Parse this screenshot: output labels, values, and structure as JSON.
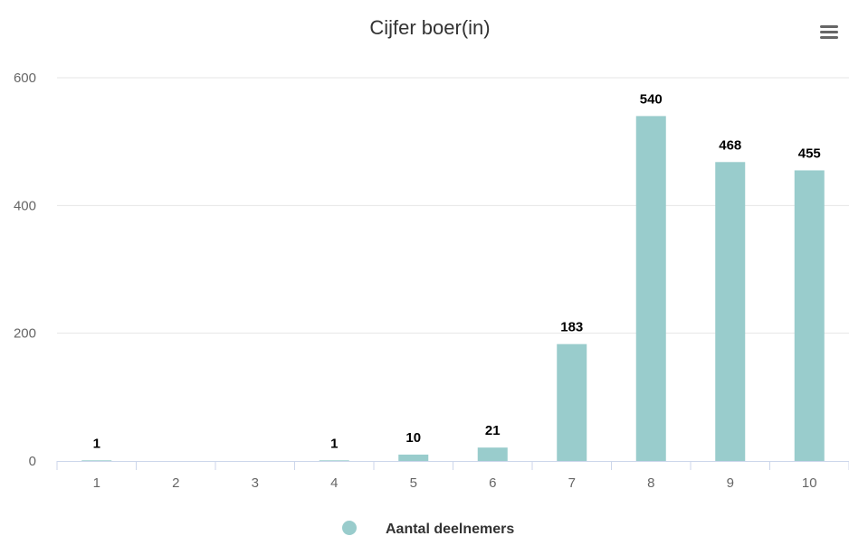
{
  "colors": {
    "bar": "#99cccc",
    "grid": "#e6e6e6",
    "axis": "#ccd6eb",
    "title": "#333333",
    "tick": "#666666",
    "menu_icon": "#666666"
  },
  "menu": {
    "icon": "hamburger-menu-icon"
  },
  "legend": {
    "marker_icon": "circle-marker-icon",
    "label": "Aantal deelnemers"
  },
  "chart_data": {
    "type": "bar",
    "title": "Cijfer boer(in)",
    "xlabel": "",
    "ylabel": "",
    "categories": [
      "1",
      "2",
      "3",
      "4",
      "5",
      "6",
      "7",
      "8",
      "9",
      "10"
    ],
    "series": [
      {
        "name": "Aantal deelnemers",
        "values": [
          1,
          null,
          null,
          1,
          10,
          21,
          183,
          540,
          468,
          455
        ],
        "data_labels": [
          "1",
          "",
          "",
          "1",
          "10",
          "21",
          "183",
          "540",
          "468",
          "455"
        ]
      }
    ],
    "yticks": [
      "0",
      "200",
      "400",
      "600"
    ],
    "ylim": [
      0,
      600
    ],
    "grid": true,
    "legend_position": "bottom-center"
  }
}
